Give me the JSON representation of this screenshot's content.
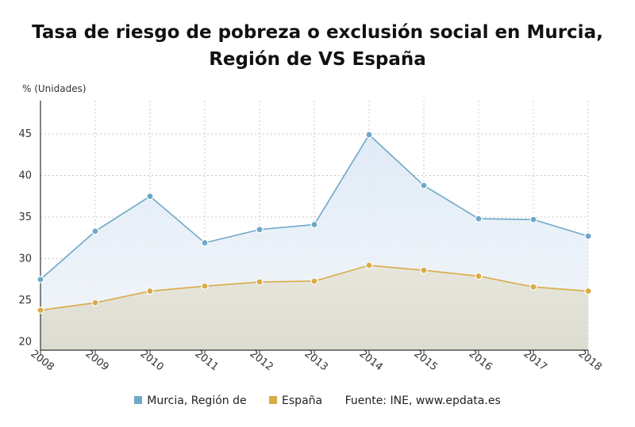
{
  "title": {
    "line1": "Tasa de riesgo de pobreza o exclusión social en Murcia,",
    "line2": "Región de VS España"
  },
  "source": "Fuente: INE, www.epdata.es",
  "colors": {
    "murcia": "#6fa8c8",
    "espana": "#d9ab48",
    "grid": "#c8c8c8",
    "axis": "#333333"
  },
  "chart_data": {
    "type": "area",
    "ylabel": "% (Unidades)",
    "ylim": [
      19,
      49
    ],
    "yticks": [
      20,
      25,
      30,
      35,
      40,
      45
    ],
    "categories": [
      "2008",
      "2009",
      "2010",
      "2011",
      "2012",
      "2013",
      "2014",
      "2015",
      "2016",
      "2017",
      "2018"
    ],
    "grid": true,
    "legend_position": "bottom",
    "series": [
      {
        "name": "Murcia, Región de",
        "values": [
          27.5,
          33.3,
          37.5,
          31.9,
          33.5,
          34.1,
          44.9,
          38.8,
          34.8,
          34.7,
          32.7
        ]
      },
      {
        "name": "España",
        "values": [
          23.8,
          24.7,
          26.1,
          26.7,
          27.2,
          27.3,
          29.2,
          28.6,
          27.9,
          26.6,
          26.1
        ]
      }
    ]
  }
}
